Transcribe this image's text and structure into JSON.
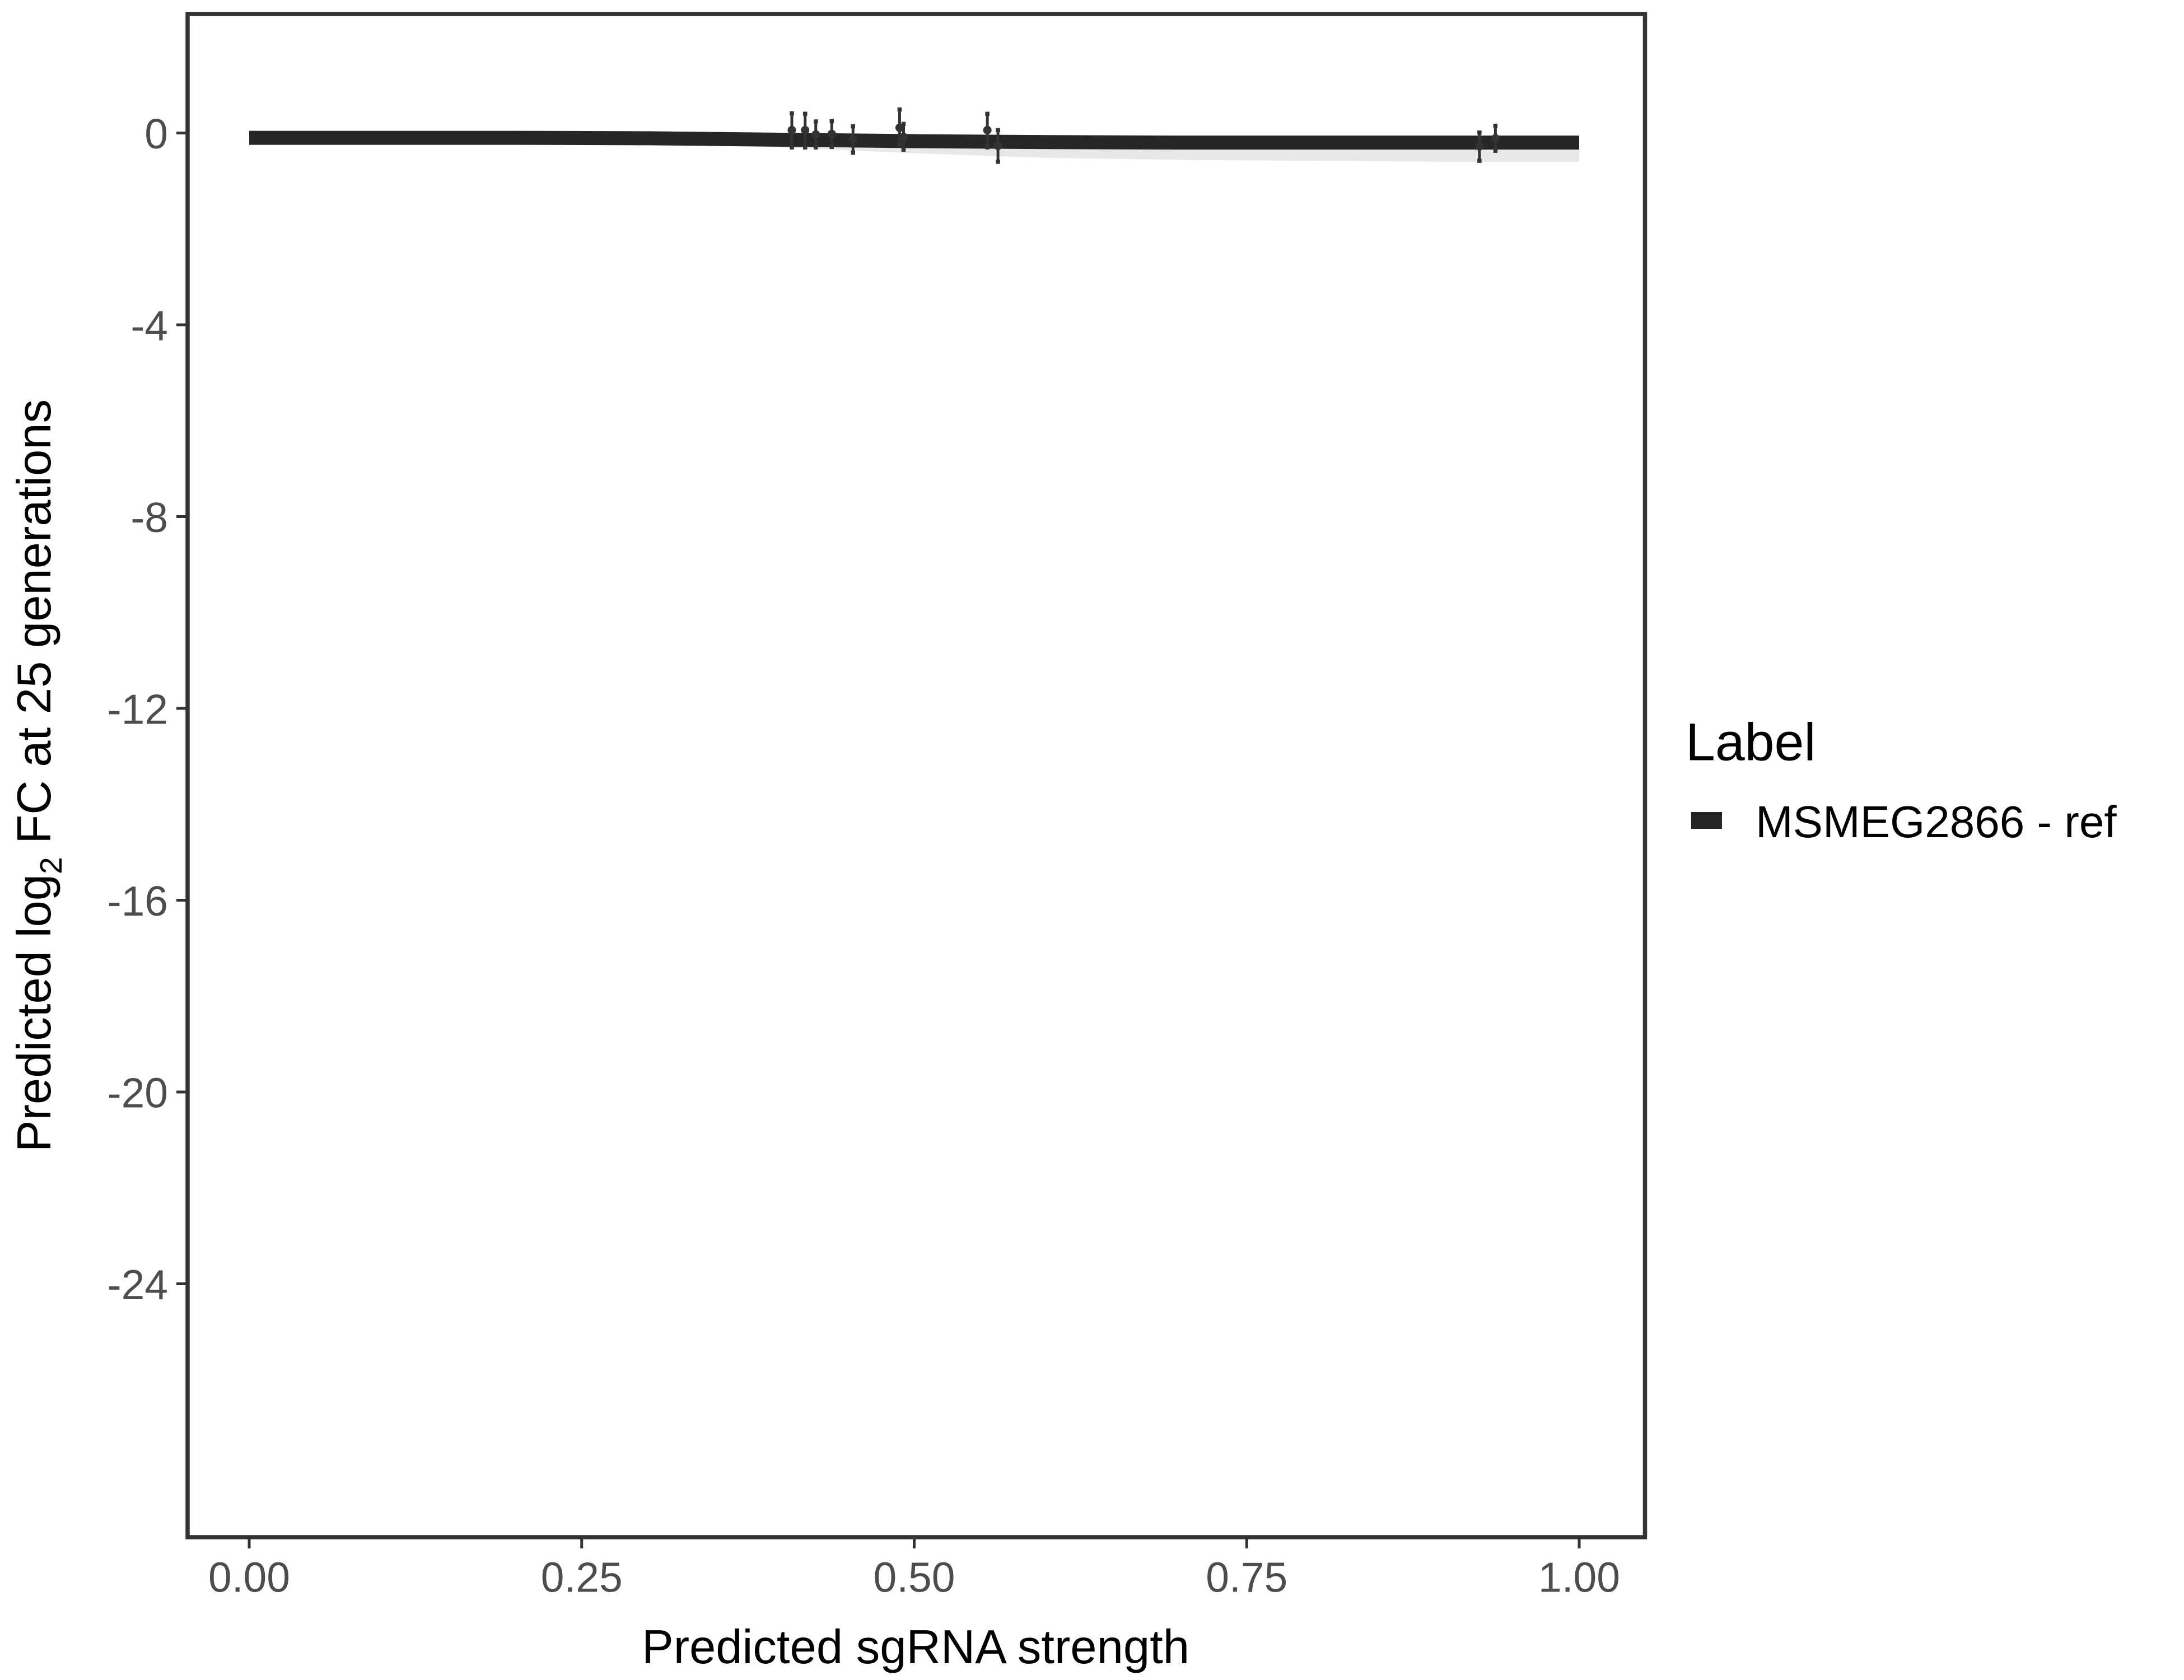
{
  "chart_data": {
    "type": "line",
    "xlabel": "Predicted sgRNA strength",
    "ylabel_parts": {
      "pre": "Predicted  log",
      "sub": "2",
      "post": " FC at 25 generations"
    },
    "xlim": [
      -0.1,
      1.1
    ],
    "ylim": [
      -29.5,
      2.5
    ],
    "x_ticks": [
      0,
      0.25,
      0.5,
      0.75,
      1
    ],
    "x_tick_labels": [
      "0.00",
      "0.25",
      "0.50",
      "0.75",
      "1.00"
    ],
    "y_ticks": [
      0,
      -4,
      -8,
      -12,
      -16,
      -20,
      -24
    ],
    "y_tick_labels": [
      "0",
      "-4",
      "-8",
      "-12",
      "-16",
      "-20",
      "-24"
    ],
    "grid": false,
    "legend": {
      "title": "Label",
      "placement": "right",
      "entries": [
        {
          "name": "MSMEG2866 - ref",
          "color": "#262626"
        }
      ]
    },
    "fit_line": {
      "color": "#262626",
      "x": [
        0,
        0.1,
        0.2,
        0.3,
        0.4,
        0.5,
        0.6,
        0.7,
        0.8,
        0.9,
        1.0
      ],
      "y": [
        -0.1,
        -0.1,
        -0.1,
        -0.11,
        -0.14,
        -0.17,
        -0.19,
        -0.2,
        -0.2,
        -0.2,
        -0.2
      ],
      "ribbon_low": [
        -0.15,
        -0.15,
        -0.16,
        -0.2,
        -0.3,
        -0.42,
        -0.52,
        -0.56,
        -0.58,
        -0.6,
        -0.6
      ]
    },
    "points": [
      {
        "x": 0.408,
        "y": 0.06,
        "lo": -0.3,
        "hi": 0.41
      },
      {
        "x": 0.418,
        "y": 0.06,
        "lo": -0.3,
        "hi": 0.4
      },
      {
        "x": 0.426,
        "y": -0.03,
        "lo": -0.3,
        "hi": 0.24
      },
      {
        "x": 0.438,
        "y": -0.02,
        "lo": -0.29,
        "hi": 0.25
      },
      {
        "x": 0.454,
        "y": -0.13,
        "lo": -0.41,
        "hi": 0.14
      },
      {
        "x": 0.489,
        "y": 0.11,
        "lo": -0.25,
        "hi": 0.49
      },
      {
        "x": 0.492,
        "y": -0.08,
        "lo": -0.35,
        "hi": 0.19
      },
      {
        "x": 0.555,
        "y": 0.06,
        "lo": -0.3,
        "hi": 0.4
      },
      {
        "x": 0.563,
        "y": -0.27,
        "lo": -0.6,
        "hi": 0.06
      },
      {
        "x": 0.925,
        "y": -0.28,
        "lo": -0.58,
        "hi": 0.01
      },
      {
        "x": 0.937,
        "y": -0.11,
        "lo": -0.37,
        "hi": 0.15
      }
    ]
  }
}
